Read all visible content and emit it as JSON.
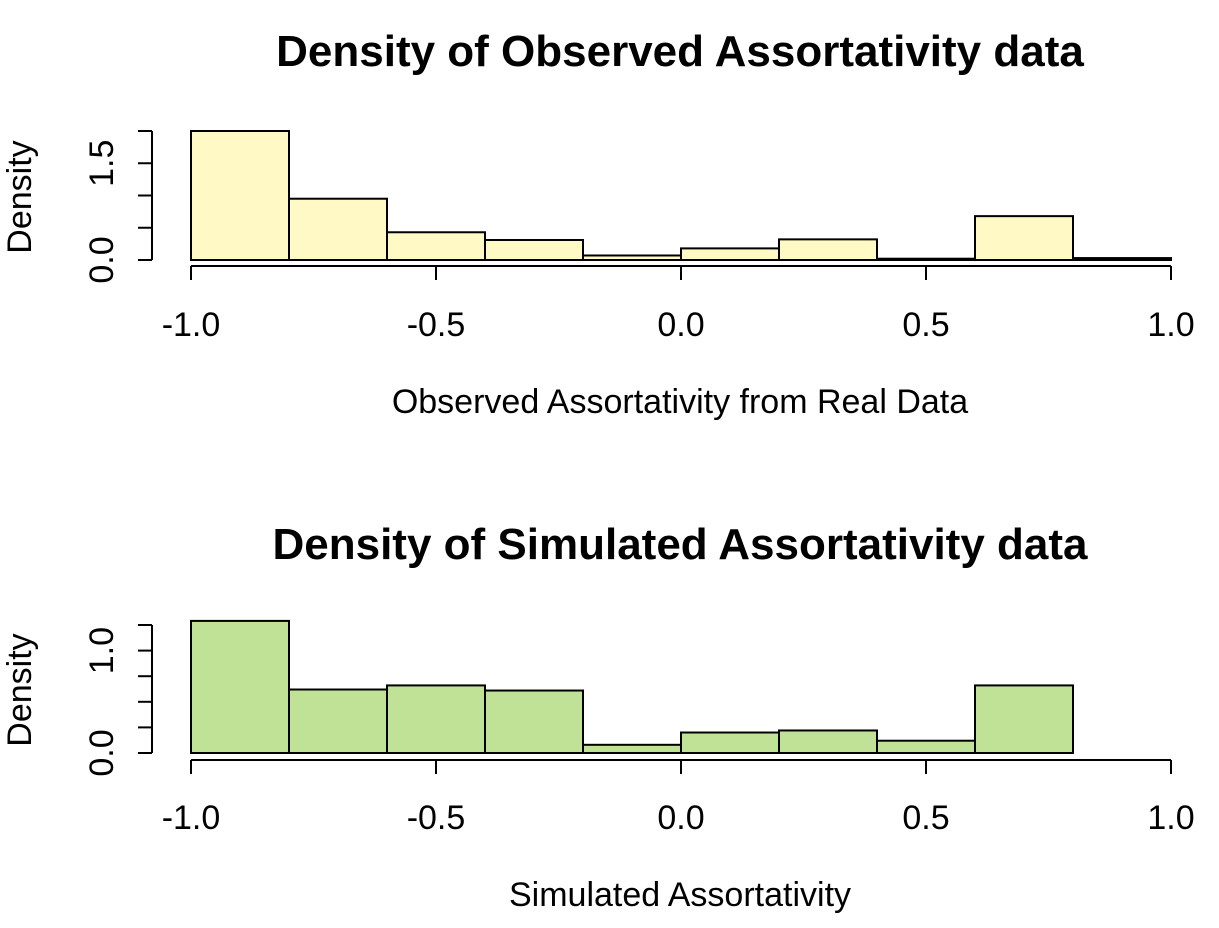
{
  "chart_data": [
    {
      "type": "bar",
      "title": "Density of Observed Assortativity data",
      "xlabel": "Observed Assortativity from Real Data",
      "ylabel": "Density",
      "bin_edges": [
        -1.0,
        -0.8,
        -0.6,
        -0.4,
        -0.2,
        0.0,
        0.2,
        0.4,
        0.6,
        0.8,
        1.0
      ],
      "values": [
        2.0,
        0.95,
        0.43,
        0.31,
        0.07,
        0.18,
        0.32,
        0.02,
        0.68,
        0.03
      ],
      "xlim": [
        -1.0,
        1.0
      ],
      "ylim": [
        0,
        2.0
      ],
      "x_ticks": [
        -1.0,
        -0.5,
        0.0,
        0.5,
        1.0
      ],
      "x_tick_labels": [
        "-1.0",
        "-0.5",
        "0.0",
        "0.5",
        "1.0"
      ],
      "y_ticks": [
        0,
        0.5,
        1.0,
        1.5,
        2.0
      ],
      "y_tick_labels": [
        "0.0",
        "",
        "",
        "1.5",
        ""
      ],
      "bar_color": "#FFFAC5",
      "grid": false
    },
    {
      "type": "bar",
      "title": "Density of Simulated Assortativity data",
      "xlabel": "Simulated Assortativity",
      "ylabel": "Density",
      "bin_edges": [
        -1.0,
        -0.8,
        -0.6,
        -0.4,
        -0.2,
        0.0,
        0.2,
        0.4,
        0.6,
        0.8,
        1.0
      ],
      "values": [
        1.29,
        0.62,
        0.66,
        0.61,
        0.08,
        0.2,
        0.22,
        0.12,
        0.66,
        0.0
      ],
      "xlim": [
        -1.0,
        1.0
      ],
      "ylim": [
        0,
        1.25
      ],
      "x_ticks": [
        -1.0,
        -0.5,
        0.0,
        0.5,
        1.0
      ],
      "x_tick_labels": [
        "-1.0",
        "-0.5",
        "0.0",
        "0.5",
        "1.0"
      ],
      "y_ticks": [
        0,
        0.25,
        0.5,
        0.75,
        1.0,
        1.25
      ],
      "y_tick_labels": [
        "0.0",
        "",
        "",
        "",
        "1.0",
        ""
      ],
      "bar_color": "#BFE297",
      "grid": false
    }
  ]
}
